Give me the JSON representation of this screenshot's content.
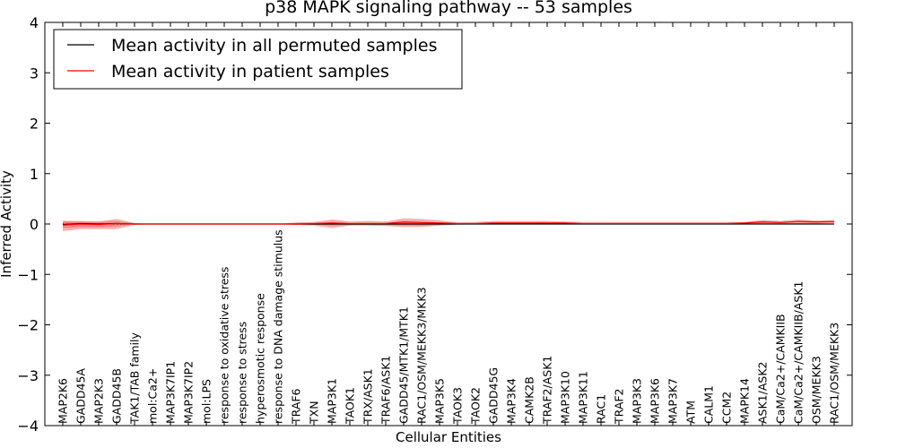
{
  "chart_data": {
    "type": "line",
    "title": "p38 MAPK signaling pathway -- 53 samples",
    "xlabel": "Cellular Entities",
    "ylabel": "Inferred Activity",
    "ylim": [
      -4,
      4
    ],
    "yticks": [
      -4,
      -3,
      -2,
      -1,
      0,
      1,
      2,
      3,
      4
    ],
    "ytick_labels": [
      "−4",
      "−3",
      "−2",
      "−1",
      "0",
      "1",
      "2",
      "3",
      "4"
    ],
    "legend_position": "top-left",
    "categories": [
      "MAP2K6",
      "GADD45A",
      "MAP2K3",
      "GADD45B",
      "TAK1/TAB family",
      "mol:Ca2+",
      "MAP3K7IP1",
      "MAP3K7IP2",
      "mol:LPS",
      "response to oxidative stress",
      "response to stress",
      "hyperosmotic response",
      "response to DNA damage stimulus",
      "TRAF6",
      "TXN",
      "MAP3K1",
      "TAOK1",
      "TRX/ASK1",
      "TRAF6/ASK1",
      "GADD45/MTK1/MTK1",
      "RAC1/OSM/MEKK3/MKK3",
      "MAP3K5",
      "TAOK3",
      "TAOK2",
      "GADD45G",
      "MAP3K4",
      "CAMK2B",
      "TRAF2/ASK1",
      "MAP3K10",
      "MAP3K11",
      "RAC1",
      "TRAF2",
      "MAP3K3",
      "MAP3K6",
      "MAP3K7",
      "ATM",
      "CALM1",
      "CCM2",
      "MAPK14",
      "ASK1/ASK2",
      "CaM/Ca2+/CAMKIIB",
      "CaM/Ca2+/CAMKIIB/ASK1",
      "OSM/MEKK3",
      "RAC1/OSM/MEKK3"
    ],
    "series": [
      {
        "name": "Mean activity in all permuted samples",
        "color": "#000000",
        "style": "solid",
        "values": [
          -0.01,
          0.01,
          0.0,
          0.01,
          0.0,
          0.0,
          0.0,
          0.0,
          0.0,
          0.0,
          0.0,
          0.0,
          0.0,
          0.0,
          0.0,
          0.0,
          0.0,
          0.0,
          0.0,
          0.0,
          0.0,
          0.0,
          0.0,
          0.0,
          0.0,
          0.0,
          0.0,
          0.0,
          0.0,
          0.0,
          0.0,
          0.0,
          0.0,
          0.0,
          0.0,
          0.0,
          0.0,
          0.0,
          0.0,
          0.0,
          0.0,
          0.0,
          0.0,
          0.0
        ],
        "band_upper": [
          0.06,
          0.05,
          0.05,
          0.06,
          0.01,
          0.0,
          0.0,
          0.0,
          0.0,
          0.0,
          0.0,
          0.0,
          0.0,
          0.02,
          0.02,
          0.03,
          0.02,
          0.02,
          0.02,
          0.03,
          0.03,
          0.02,
          0.01,
          0.01,
          0.01,
          0.01,
          0.01,
          0.01,
          0.01,
          0.01,
          0.01,
          0.01,
          0.01,
          0.01,
          0.01,
          0.01,
          0.01,
          0.01,
          0.01,
          0.01,
          0.01,
          0.01,
          0.01,
          0.01
        ],
        "band_lower": [
          -0.08,
          -0.06,
          -0.06,
          -0.05,
          -0.01,
          0.0,
          0.0,
          0.0,
          0.0,
          0.0,
          0.0,
          0.0,
          0.0,
          -0.02,
          -0.02,
          -0.03,
          -0.02,
          -0.02,
          -0.02,
          -0.03,
          -0.03,
          -0.02,
          -0.01,
          -0.01,
          -0.01,
          -0.01,
          -0.01,
          -0.01,
          -0.01,
          -0.01,
          -0.01,
          -0.01,
          -0.01,
          -0.01,
          -0.01,
          -0.01,
          -0.01,
          -0.01,
          -0.01,
          -0.01,
          -0.01,
          -0.01,
          -0.01,
          -0.01
        ]
      },
      {
        "name": "Mean activity in patient samples",
        "color": "#ff0000",
        "style": "solid",
        "values": [
          -0.02,
          0.0,
          -0.01,
          0.01,
          0.0,
          0.0,
          0.0,
          0.0,
          0.0,
          0.0,
          0.0,
          0.0,
          0.0,
          0.0,
          0.01,
          0.02,
          0.01,
          0.01,
          0.01,
          0.04,
          0.03,
          0.02,
          0.01,
          0.01,
          0.02,
          0.02,
          0.02,
          0.02,
          0.02,
          0.01,
          0.01,
          0.01,
          0.01,
          0.01,
          0.01,
          0.01,
          0.01,
          0.01,
          0.02,
          0.04,
          0.03,
          0.05,
          0.04,
          0.05
        ],
        "band_upper": [
          0.06,
          0.06,
          0.05,
          0.1,
          0.02,
          0.0,
          0.0,
          0.0,
          0.0,
          0.0,
          0.0,
          0.0,
          0.0,
          0.03,
          0.04,
          0.09,
          0.05,
          0.06,
          0.05,
          0.11,
          0.1,
          0.07,
          0.03,
          0.04,
          0.06,
          0.06,
          0.06,
          0.06,
          0.05,
          0.04,
          0.04,
          0.04,
          0.04,
          0.04,
          0.04,
          0.04,
          0.04,
          0.04,
          0.04,
          0.08,
          0.06,
          0.09,
          0.07,
          0.08
        ],
        "band_lower": [
          -0.14,
          -0.1,
          -0.1,
          -0.1,
          -0.02,
          0.0,
          0.0,
          0.0,
          0.0,
          0.0,
          0.0,
          0.0,
          0.0,
          -0.02,
          -0.03,
          -0.08,
          -0.03,
          -0.03,
          -0.04,
          -0.06,
          -0.06,
          -0.03,
          -0.01,
          -0.01,
          -0.01,
          -0.01,
          -0.01,
          -0.01,
          0.0,
          -0.01,
          -0.01,
          -0.01,
          -0.01,
          -0.01,
          -0.01,
          -0.01,
          -0.01,
          -0.01,
          0.0,
          0.0,
          0.0,
          0.01,
          0.01,
          0.02
        ]
      }
    ],
    "reference_line": {
      "y": 0,
      "style": "dotted",
      "color": "#000000"
    },
    "band_color": "#ff0000"
  }
}
